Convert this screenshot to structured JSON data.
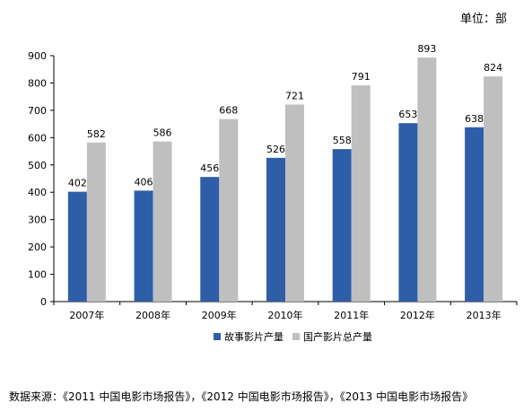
{
  "unit_label": "单位：部",
  "source_text": "数据来源：《2011 中国电影市场报告》，《2012 中国电影市场报告》，《2013 中国电影市场报告》",
  "chart_data": {
    "type": "bar",
    "categories": [
      "2007年",
      "2008年",
      "2009年",
      "2010年",
      "2011年",
      "2012年",
      "2013年"
    ],
    "series": [
      {
        "name": "故事影片产量",
        "values": [
          402,
          406,
          456,
          526,
          558,
          653,
          638
        ],
        "color": "#2e5ea8"
      },
      {
        "name": "国产影片总产量",
        "values": [
          582,
          586,
          668,
          721,
          791,
          893,
          824
        ],
        "color": "#bfbfbf"
      }
    ],
    "ylim": [
      0,
      900
    ],
    "yticks": [
      0,
      100,
      200,
      300,
      400,
      500,
      600,
      700,
      800,
      900
    ],
    "grid": false,
    "legend": "bottom"
  }
}
